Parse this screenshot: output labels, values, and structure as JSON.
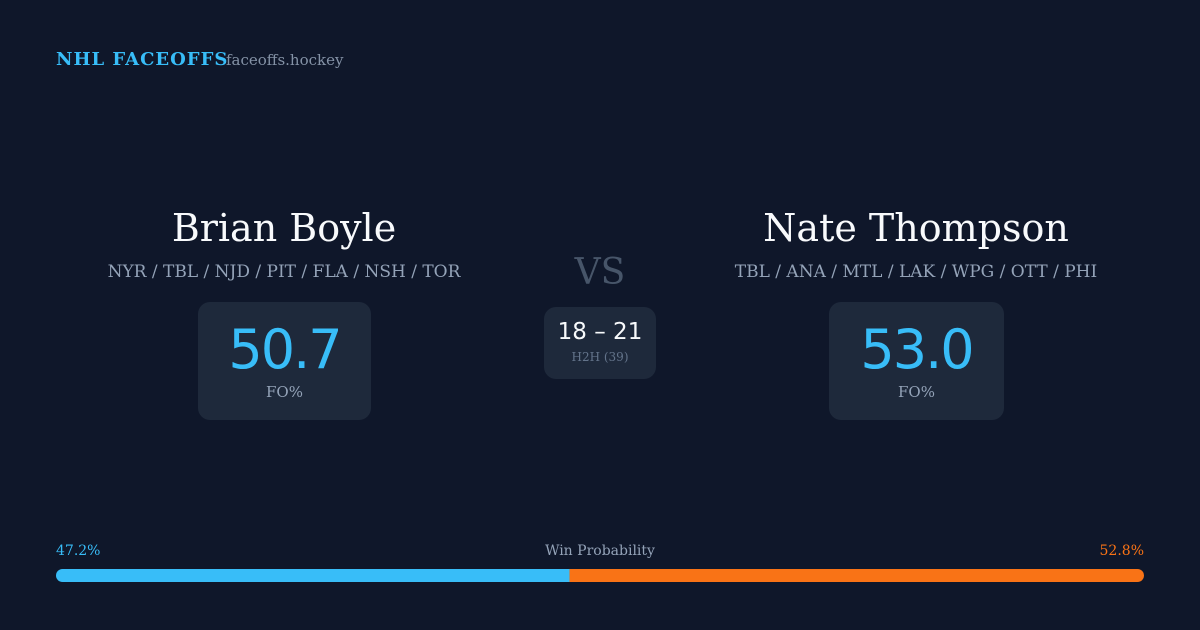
{
  "header": {
    "brand": "NHL FACEOFFS",
    "site": "faceoffs.hockey"
  },
  "players": [
    {
      "name": "Brian Boyle",
      "teams": "NYR / TBL / NJD / PIT / FLA / NSH / TOR",
      "fo_pct": "50.7",
      "fo_label": "FO%"
    },
    {
      "name": "Nate Thompson",
      "teams": "TBL / ANA / MTL / LAK / WPG / OTT / PHI",
      "fo_pct": "53.0",
      "fo_label": "FO%"
    }
  ],
  "vs": "VS",
  "h2h": {
    "score": "18 – 21",
    "label": "H2H (39)"
  },
  "win_probability": {
    "title": "Win Probability",
    "values": [
      47.2,
      52.8
    ],
    "value_labels": [
      "47.2%",
      "52.8%"
    ],
    "colors": [
      "#38bdf8",
      "#f97316"
    ]
  }
}
